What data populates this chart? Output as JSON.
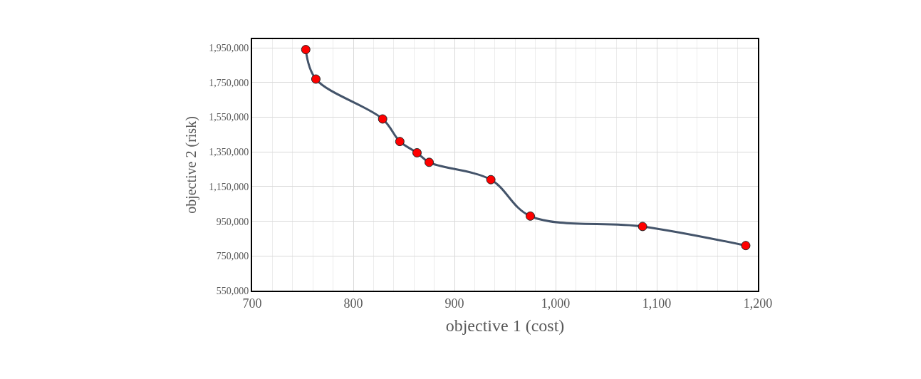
{
  "chart_data": {
    "type": "line",
    "xlabel": "objective 1 (cost)",
    "ylabel": "objective 2 (risk)",
    "x": [
      753,
      763,
      829,
      846,
      863,
      875,
      936,
      975,
      1086,
      1188
    ],
    "series": [
      {
        "color": "#44546a",
        "values": [
          1940000,
          1770000,
          1540000,
          1410000,
          1345000,
          1290000,
          1190000,
          980000,
          920000,
          810000
        ]
      }
    ],
    "xlim": [
      700,
      1200
    ],
    "xticks": [
      700,
      800,
      900,
      {
        "value": 1000,
        "label": "1,000"
      },
      {
        "value": 1100,
        "label": "1,100"
      },
      {
        "value": 1200,
        "label": "1,200"
      }
    ],
    "ylim": [
      550000,
      2000000
    ],
    "yticks": [
      {
        "value": 550000,
        "label": "550,000"
      },
      {
        "value": 750000,
        "label": "750,000"
      },
      {
        "value": 950000,
        "label": "950,000"
      },
      {
        "value": 1150000,
        "label": "1,150,000"
      },
      {
        "value": 1350000,
        "label": "1,350,000"
      },
      {
        "value": 1550000,
        "label": "1,550,000"
      },
      {
        "value": 1750000,
        "label": "1,750,000"
      },
      {
        "value": 1950000,
        "label": "1,950,000"
      }
    ],
    "grid": true,
    "marker": "circle",
    "line_style": "solid"
  }
}
